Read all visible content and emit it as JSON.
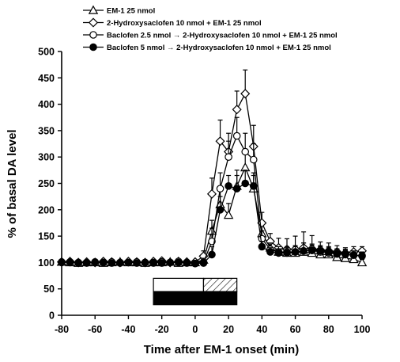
{
  "chart_data": {
    "type": "line",
    "title": "",
    "xlabel": "Time after EM-1 onset (min)",
    "ylabel": "% of basal DA level",
    "xlim": [
      -80,
      100
    ],
    "ylim": [
      0,
      500
    ],
    "xticks": [
      -80,
      -60,
      -40,
      -20,
      0,
      20,
      40,
      60,
      80,
      100
    ],
    "yticks": [
      0,
      50,
      100,
      150,
      200,
      250,
      300,
      350,
      400,
      450,
      500
    ],
    "grid": false,
    "legend_position": "top-left",
    "x": [
      -80,
      -75,
      -70,
      -65,
      -60,
      -55,
      -50,
      -45,
      -40,
      -35,
      -30,
      -25,
      -20,
      -15,
      -10,
      -5,
      0,
      5,
      10,
      15,
      20,
      25,
      30,
      35,
      40,
      45,
      50,
      55,
      60,
      65,
      70,
      75,
      80,
      85,
      90,
      95,
      100
    ],
    "series": [
      {
        "name": "EM-1 25 nmol",
        "marker": "open-triangle",
        "values": [
          101,
          100,
          99,
          100,
          100,
          99,
          100,
          101,
          100,
          100,
          99,
          100,
          100,
          101,
          99,
          100,
          100,
          105,
          160,
          210,
          190,
          245,
          280,
          240,
          155,
          128,
          120,
          118,
          118,
          120,
          118,
          115,
          115,
          110,
          108,
          106,
          100
        ]
      },
      {
        "name": "2-Hydroxysaclofen 10 nmol + EM-1 25 nmol",
        "marker": "open-diamond",
        "values": [
          101,
          102,
          100,
          101,
          100,
          102,
          101,
          100,
          102,
          101,
          100,
          102,
          103,
          100,
          102,
          101,
          101,
          112,
          230,
          330,
          310,
          390,
          420,
          320,
          175,
          140,
          128,
          125,
          125,
          128,
          126,
          124,
          122,
          120,
          118,
          120,
          122
        ]
      },
      {
        "name": "Baclofen 2.5 nmol → 2-Hydroxysaclofen 10 nmol + EM-1 25 nmol",
        "marker": "open-circle",
        "values": [
          100,
          101,
          99,
          100,
          101,
          100,
          101,
          99,
          100,
          101,
          100,
          99,
          101,
          100,
          102,
          100,
          98,
          100,
          140,
          240,
          300,
          340,
          310,
          295,
          145,
          125,
          120,
          120,
          120,
          122,
          123,
          120,
          118,
          116,
          115,
          114,
          112
        ]
      },
      {
        "name": "Baclofen 5 nmol → 2-Hydroxysaclofen 10 nmol + EM-1 25 nmol",
        "marker": "filled-circle",
        "values": [
          101,
          100,
          100,
          99,
          100,
          100,
          99,
          100,
          100,
          99,
          100,
          100,
          99,
          100,
          100,
          99,
          98,
          99,
          115,
          200,
          245,
          240,
          250,
          245,
          130,
          120,
          118,
          118,
          120,
          122,
          123,
          122,
          120,
          117,
          116,
          114,
          113
        ]
      }
    ],
    "errors": [
      [
        3,
        2,
        3,
        3,
        2,
        3,
        3,
        2,
        3,
        3,
        2,
        3,
        3,
        2,
        3,
        3,
        4,
        8,
        20,
        25,
        22,
        30,
        35,
        30,
        18,
        10,
        8,
        8,
        10,
        12,
        10,
        8,
        8,
        8,
        8,
        6,
        6
      ],
      [
        3,
        3,
        3,
        3,
        3,
        3,
        3,
        3,
        3,
        3,
        3,
        3,
        4,
        3,
        4,
        3,
        4,
        10,
        30,
        40,
        35,
        35,
        45,
        40,
        20,
        15,
        18,
        20,
        25,
        30,
        25,
        15,
        15,
        12,
        10,
        10,
        8
      ],
      [
        3,
        3,
        3,
        3,
        3,
        3,
        3,
        3,
        3,
        3,
        3,
        3,
        3,
        3,
        3,
        3,
        5,
        8,
        25,
        30,
        30,
        35,
        35,
        30,
        15,
        12,
        10,
        10,
        12,
        15,
        12,
        10,
        10,
        10,
        10,
        8,
        8
      ],
      [
        3,
        2,
        2,
        3,
        2,
        2,
        3,
        2,
        2,
        3,
        2,
        2,
        3,
        2,
        2,
        3,
        3,
        5,
        15,
        25,
        20,
        25,
        25,
        20,
        10,
        8,
        8,
        10,
        10,
        15,
        10,
        10,
        10,
        8,
        8,
        6,
        6
      ]
    ],
    "treatment_bars": [
      {
        "x_start": -25,
        "x_end": 25,
        "y_bottom": 20,
        "y_top": 45,
        "fill": "#000000"
      },
      {
        "x_start": -25,
        "x_end": 5,
        "y_bottom": 45,
        "y_top": 70,
        "fill": "#ffffff"
      },
      {
        "x_start": 5,
        "x_end": 25,
        "y_bottom": 45,
        "y_top": 70,
        "fill": "hatched"
      }
    ]
  }
}
